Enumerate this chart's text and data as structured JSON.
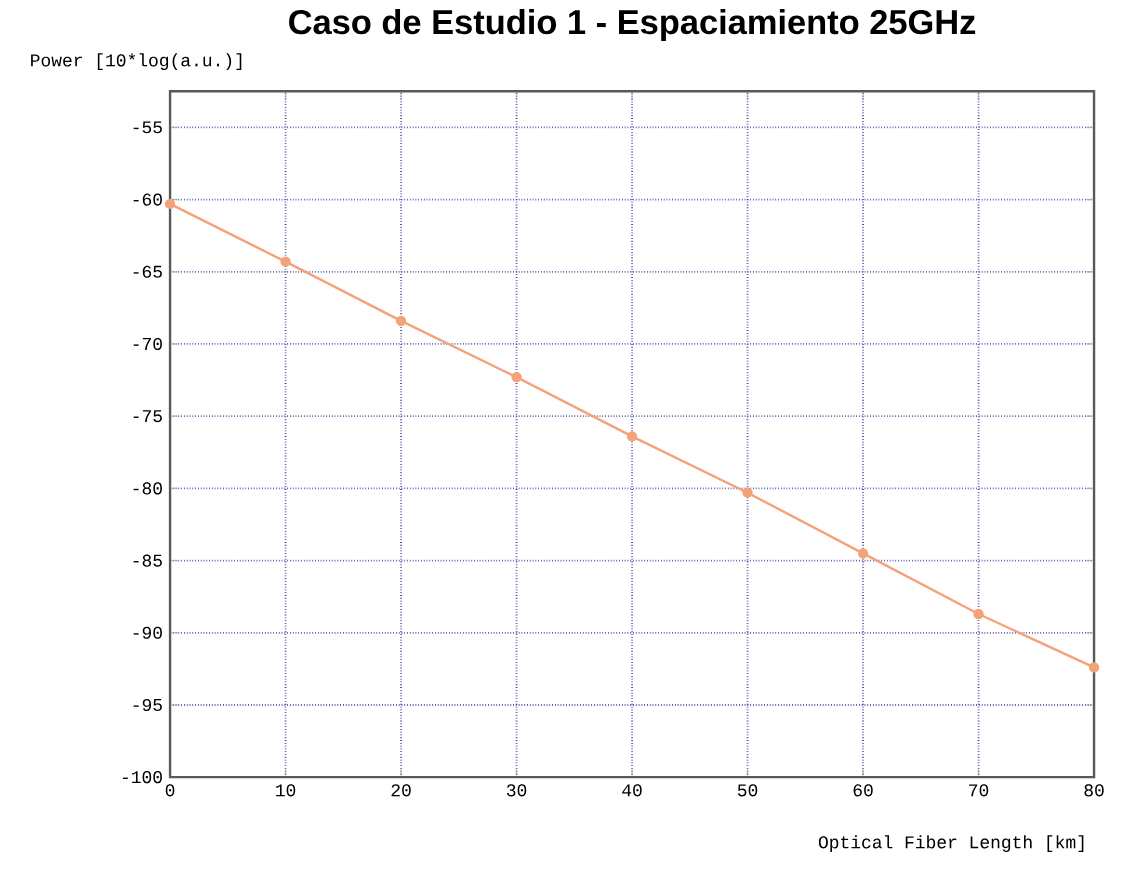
{
  "chart_data": {
    "type": "line",
    "title": "Caso de Estudio 1 - Espaciamiento 25GHz",
    "ylabel": "Power  [10*log(a.u.)]",
    "xlabel": "Optical Fiber Length [km]",
    "x": [
      0,
      10,
      20,
      30,
      40,
      50,
      60,
      70,
      80
    ],
    "series": [
      {
        "color": "#f4a27a",
        "values": [
          -60.3,
          -64.3,
          -68.4,
          -72.3,
          -76.4,
          -80.3,
          -84.5,
          -88.7,
          -92.4
        ]
      }
    ],
    "xlim": [
      0,
      80
    ],
    "ylim": [
      -100,
      -52.5
    ],
    "xticks": [
      0,
      10,
      20,
      30,
      40,
      50,
      60,
      70,
      80
    ],
    "yticks": [
      -100,
      -95,
      -90,
      -85,
      -80,
      -75,
      -70,
      -65,
      -60,
      -55
    ],
    "grid": true,
    "marker": "circle",
    "line_style": "solid"
  }
}
